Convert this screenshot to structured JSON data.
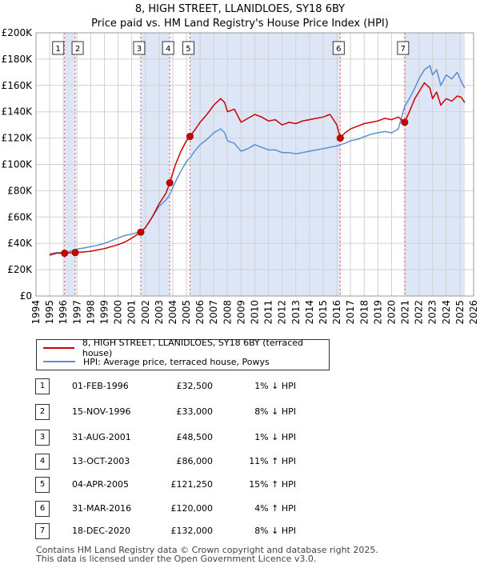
{
  "header": {
    "title": "8, HIGH STREET, LLANIDLOES, SY18 6BY",
    "subtitle": "Price paid vs. HM Land Registry's House Price Index (HPI)"
  },
  "colors": {
    "price_line": "#cc0000",
    "hpi_line": "#5b8fd1",
    "shade": "#dde6f7"
  },
  "chart_data": {
    "type": "line",
    "title": "8, HIGH STREET, LLANIDLOES, SY18 6BY",
    "subtitle": "Price paid vs. HM Land Registry's House Price Index (HPI)",
    "xlabel": "",
    "ylabel": "",
    "xlim": [
      1994,
      2026
    ],
    "ylim": [
      0,
      200000
    ],
    "y_ticks": [
      0,
      20000,
      40000,
      60000,
      80000,
      100000,
      120000,
      140000,
      160000,
      180000,
      200000
    ],
    "y_tick_labels": [
      "£0",
      "£20K",
      "£40K",
      "£60K",
      "£80K",
      "£100K",
      "£120K",
      "£140K",
      "£160K",
      "£180K",
      "£200K"
    ],
    "x_ticks": [
      1994,
      1995,
      1996,
      1997,
      1998,
      1999,
      2000,
      2001,
      2002,
      2003,
      2004,
      2005,
      2006,
      2007,
      2008,
      2009,
      2010,
      2011,
      2012,
      2013,
      2014,
      2015,
      2016,
      2017,
      2018,
      2019,
      2020,
      2021,
      2022,
      2023,
      2024,
      2025,
      2026
    ],
    "x_tick_labels": [
      "1994",
      "1995",
      "1996",
      "1997",
      "1998",
      "1999",
      "2000",
      "2001",
      "2002",
      "2003",
      "2004",
      "2005",
      "2006",
      "2007",
      "2008",
      "2009",
      "2010",
      "2011",
      "2012",
      "2013",
      "2014",
      "2015",
      "2016",
      "2017",
      "2018",
      "2019",
      "2020",
      "2021",
      "2022",
      "2023",
      "2024",
      "2025",
      "2026"
    ],
    "grid": true,
    "legend": "below",
    "shaded_spans": [
      [
        1996.09,
        1996.87
      ],
      [
        2001.66,
        2003.78
      ],
      [
        2005.26,
        2016.25
      ],
      [
        2020.96,
        2025.35
      ]
    ],
    "series": [
      {
        "name": "8, HIGH STREET, LLANIDLOES, SY18 6BY (terraced house)",
        "x": [
          1995.0,
          1995.5,
          1996.09,
          1996.5,
          1996.87,
          1997.5,
          1998.0,
          1998.5,
          1999.0,
          1999.5,
          2000.0,
          2000.5,
          2001.0,
          2001.66,
          2002.0,
          2002.5,
          2003.0,
          2003.5,
          2003.78,
          2004.2,
          2004.6,
          2005.0,
          2005.26,
          2005.6,
          2006.0,
          2006.5,
          2007.0,
          2007.5,
          2007.8,
          2008.0,
          2008.5,
          2009.0,
          2009.5,
          2010.0,
          2010.5,
          2011.0,
          2011.5,
          2012.0,
          2012.5,
          2013.0,
          2013.5,
          2014.0,
          2014.5,
          2015.0,
          2015.5,
          2016.0,
          2016.25,
          2016.6,
          2017.0,
          2017.5,
          2018.0,
          2018.5,
          2019.0,
          2019.5,
          2020.0,
          2020.5,
          2020.96,
          2021.3,
          2021.7,
          2022.0,
          2022.4,
          2022.8,
          2023.0,
          2023.3,
          2023.6,
          2024.0,
          2024.4,
          2024.8,
          2025.1,
          2025.35
        ],
        "y": [
          31000,
          32500,
          32500,
          32800,
          33000,
          33500,
          34000,
          35000,
          36000,
          37500,
          39000,
          41000,
          44000,
          48500,
          52000,
          60000,
          70000,
          78000,
          86000,
          100000,
          110000,
          118000,
          121250,
          126000,
          132000,
          138000,
          145000,
          150000,
          147000,
          140000,
          142000,
          132000,
          135000,
          138000,
          136000,
          133000,
          134000,
          130000,
          132000,
          131000,
          133000,
          134000,
          135000,
          136000,
          138000,
          130000,
          120000,
          124000,
          127000,
          129000,
          131000,
          132000,
          133000,
          135000,
          134000,
          136000,
          132000,
          140000,
          150000,
          155000,
          162000,
          158000,
          150000,
          155000,
          145000,
          150000,
          148000,
          152000,
          151000,
          147000
        ]
      },
      {
        "name": "HPI: Average price, terraced house, Powys",
        "x": [
          1995.0,
          1995.5,
          1996.09,
          1996.5,
          1996.87,
          1997.5,
          1998.0,
          1998.5,
          1999.0,
          1999.5,
          2000.0,
          2000.5,
          2001.0,
          2001.66,
          2002.0,
          2002.5,
          2003.0,
          2003.5,
          2003.78,
          2004.2,
          2004.6,
          2005.0,
          2005.26,
          2005.6,
          2006.0,
          2006.5,
          2007.0,
          2007.5,
          2007.8,
          2008.0,
          2008.5,
          2009.0,
          2009.5,
          2010.0,
          2010.5,
          2011.0,
          2011.5,
          2012.0,
          2012.5,
          2013.0,
          2013.5,
          2014.0,
          2014.5,
          2015.0,
          2015.5,
          2016.0,
          2016.25,
          2016.6,
          2017.0,
          2017.5,
          2018.0,
          2018.5,
          2019.0,
          2019.5,
          2020.0,
          2020.5,
          2020.96,
          2021.3,
          2021.7,
          2022.0,
          2022.4,
          2022.8,
          2023.0,
          2023.3,
          2023.6,
          2024.0,
          2024.4,
          2024.8,
          2025.1,
          2025.35
        ],
        "y": [
          32000,
          33000,
          33000,
          34000,
          35500,
          36500,
          37500,
          38500,
          40000,
          42000,
          44000,
          46000,
          47000,
          49000,
          52000,
          60000,
          68000,
          73000,
          77000,
          87000,
          95000,
          102000,
          105000,
          110000,
          115000,
          119000,
          124000,
          127000,
          124000,
          118000,
          116000,
          110000,
          112000,
          115000,
          113000,
          111000,
          111000,
          109000,
          109000,
          108000,
          109000,
          110000,
          111000,
          112000,
          113000,
          114000,
          115000,
          116000,
          118000,
          119000,
          121000,
          123000,
          124000,
          125000,
          124000,
          127000,
          144000,
          150000,
          158000,
          165000,
          172000,
          175000,
          168000,
          172000,
          160000,
          168000,
          165000,
          170000,
          163000,
          158000
        ]
      }
    ],
    "sale_points": [
      {
        "label": "1",
        "x": 1996.09,
        "y": 32500
      },
      {
        "label": "2",
        "x": 1996.87,
        "y": 33000
      },
      {
        "label": "3",
        "x": 2001.66,
        "y": 48500
      },
      {
        "label": "4",
        "x": 2003.78,
        "y": 86000
      },
      {
        "label": "5",
        "x": 2005.26,
        "y": 121250
      },
      {
        "label": "6",
        "x": 2016.25,
        "y": 120000
      },
      {
        "label": "7",
        "x": 2020.96,
        "y": 132000
      }
    ]
  },
  "legend": {
    "price_label": "8, HIGH STREET, LLANIDLOES, SY18 6BY (terraced house)",
    "hpi_label": "HPI: Average price, terraced house, Powys"
  },
  "transactions": [
    {
      "num": "1",
      "date": "01-FEB-1996",
      "price": "£32,500",
      "hpi": "1% ↓ HPI"
    },
    {
      "num": "2",
      "date": "15-NOV-1996",
      "price": "£33,000",
      "hpi": "8% ↓ HPI"
    },
    {
      "num": "3",
      "date": "31-AUG-2001",
      "price": "£48,500",
      "hpi": "1% ↓ HPI"
    },
    {
      "num": "4",
      "date": "13-OCT-2003",
      "price": "£86,000",
      "hpi": "11% ↑ HPI"
    },
    {
      "num": "5",
      "date": "04-APR-2005",
      "price": "£121,250",
      "hpi": "15% ↑ HPI"
    },
    {
      "num": "6",
      "date": "31-MAR-2016",
      "price": "£120,000",
      "hpi": "4% ↑ HPI"
    },
    {
      "num": "7",
      "date": "18-DEC-2020",
      "price": "£132,000",
      "hpi": "8% ↓ HPI"
    }
  ],
  "footer": {
    "line1": "Contains HM Land Registry data © Crown copyright and database right 2025.",
    "line2": "This data is licensed under the Open Government Licence v3.0."
  }
}
